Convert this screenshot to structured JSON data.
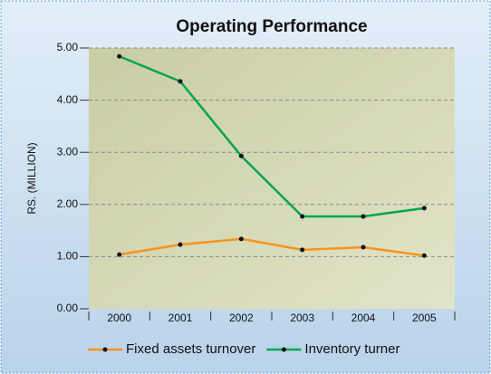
{
  "chart_data": {
    "type": "line",
    "title": "Operating Performance",
    "y_label": "RS. (MILLION)",
    "categories": [
      "2000",
      "2001",
      "2002",
      "2003",
      "2004",
      "2005"
    ],
    "series": [
      {
        "name": "Fixed assets turnover",
        "color": "#f7941d",
        "values": [
          1.04,
          1.23,
          1.34,
          1.13,
          1.18,
          1.02
        ]
      },
      {
        "name": "Inventory turner",
        "color": "#00a651",
        "values": [
          4.84,
          4.36,
          2.93,
          1.77,
          1.77,
          1.93
        ]
      }
    ],
    "ylim": [
      0,
      5
    ],
    "yticks": [
      {
        "value": 0,
        "label": "0.00"
      },
      {
        "value": 1,
        "label": "1.00"
      },
      {
        "value": 2,
        "label": "2.00"
      },
      {
        "value": 3,
        "label": "3.00"
      },
      {
        "value": 4,
        "label": "4.00"
      },
      {
        "value": 5,
        "label": "5.00"
      }
    ],
    "grid": true,
    "legend": "bottom"
  }
}
